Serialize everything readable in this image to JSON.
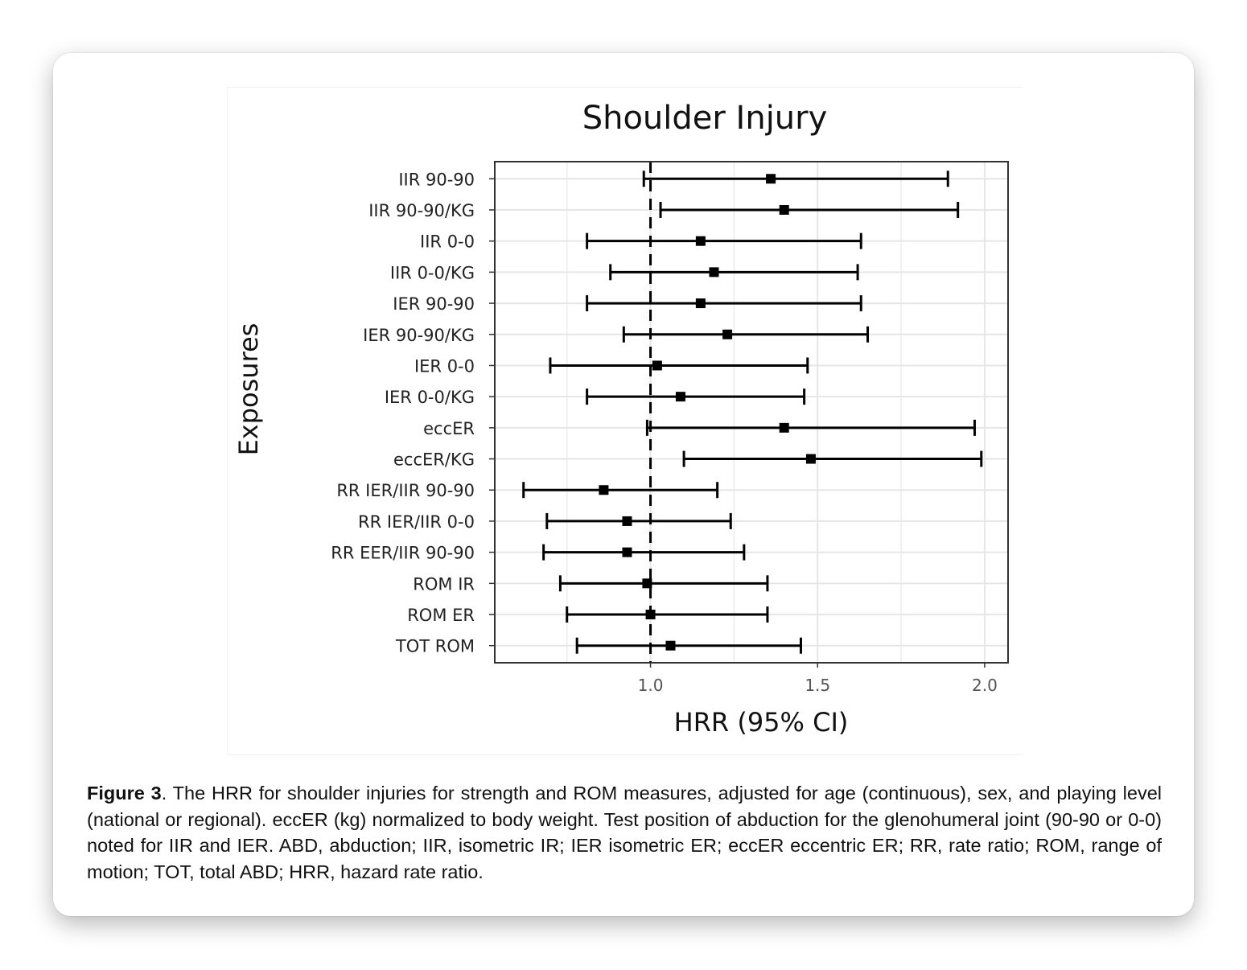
{
  "chart_data": {
    "type": "forest",
    "title": "Shoulder Injury",
    "xlabel": "HRR (95% CI)",
    "ylabel": "Exposures",
    "xlim": [
      0.534,
      2.07
    ],
    "xticks": [
      1.0,
      1.5,
      2.0
    ],
    "xtick_labels": [
      "1.0",
      "1.5",
      "2.0"
    ],
    "minor_gridlines": [
      0.75,
      1.25,
      1.75
    ],
    "reference_line": 1.0,
    "grid": true,
    "rows": [
      {
        "label": "IIR 90-90",
        "est": 1.36,
        "low": 0.98,
        "high": 1.89
      },
      {
        "label": "IIR 90-90/KG",
        "est": 1.4,
        "low": 1.03,
        "high": 1.92
      },
      {
        "label": "IIR 0-0",
        "est": 1.15,
        "low": 0.81,
        "high": 1.63
      },
      {
        "label": "IIR 0-0/KG",
        "est": 1.19,
        "low": 0.88,
        "high": 1.62
      },
      {
        "label": "IER 90-90",
        "est": 1.15,
        "low": 0.81,
        "high": 1.63
      },
      {
        "label": "IER 90-90/KG",
        "est": 1.23,
        "low": 0.92,
        "high": 1.65
      },
      {
        "label": "IER 0-0",
        "est": 1.02,
        "low": 0.7,
        "high": 1.47
      },
      {
        "label": "IER 0-0/KG",
        "est": 1.09,
        "low": 0.81,
        "high": 1.46
      },
      {
        "label": "eccER",
        "est": 1.4,
        "low": 0.99,
        "high": 1.97
      },
      {
        "label": "eccER/KG",
        "est": 1.48,
        "low": 1.1,
        "high": 1.99
      },
      {
        "label": "RR IER/IIR 90-90",
        "est": 0.86,
        "low": 0.62,
        "high": 1.2
      },
      {
        "label": "RR IER/IIR 0-0",
        "est": 0.93,
        "low": 0.69,
        "high": 1.24
      },
      {
        "label": "RR EER/IIR 90-90",
        "est": 0.93,
        "low": 0.68,
        "high": 1.28
      },
      {
        "label": "ROM IR",
        "est": 0.99,
        "low": 0.73,
        "high": 1.35
      },
      {
        "label": "ROM ER",
        "est": 1.0,
        "low": 0.75,
        "high": 1.35
      },
      {
        "label": "TOT ROM",
        "est": 1.06,
        "low": 0.78,
        "high": 1.45
      }
    ]
  },
  "caption": {
    "label": "Figure 3",
    "text": ". The HRR for shoulder injuries for strength and ROM measures, adjusted for age (continuous), sex, and playing level (national or regional). eccER (kg) normalized to body weight. Test position of abduction for the glenohumeral joint (90-90 or 0-0) noted for IIR and IER. ABD, abduction; IIR, isometric IR; IER isometric ER; eccER eccentric ER; RR, rate ratio; ROM, range of motion; TOT, total ABD; HRR, hazard rate ratio."
  }
}
